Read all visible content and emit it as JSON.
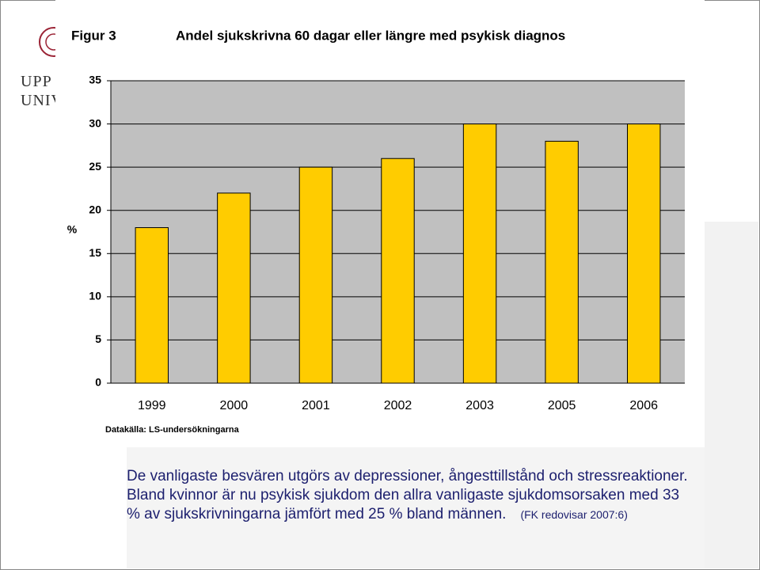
{
  "chart_data": {
    "type": "bar",
    "label": "Figur 3",
    "title": "Andel sjukskrivna 60 dagar eller längre med psykisk diagnos",
    "y_label": "%",
    "source": "Datakälla: LS-undersökningarna",
    "categories": [
      "1999",
      "2000",
      "2001",
      "2002",
      "2003",
      "2005",
      "2006"
    ],
    "values": [
      18,
      22,
      25,
      26,
      30,
      28,
      30
    ],
    "color": "#ffcc00",
    "ylim": [
      0,
      35
    ],
    "yticks": [
      0,
      5,
      10,
      15,
      20,
      25,
      30,
      35
    ],
    "grid": true
  },
  "slide": {
    "logo_lines": [
      "UPP",
      "UNIV"
    ],
    "caption": "De vanligaste besvären utgörs av depressioner, ångesttillstånd och stressreaktioner. Bland kvinnor är nu psykisk sjukdom den allra vanligaste sjukdomsorsaken med 33 % av sjukskrivningarna jämfört med 25 % bland männen.",
    "citation": "(FK redovisar 2007:6)"
  }
}
